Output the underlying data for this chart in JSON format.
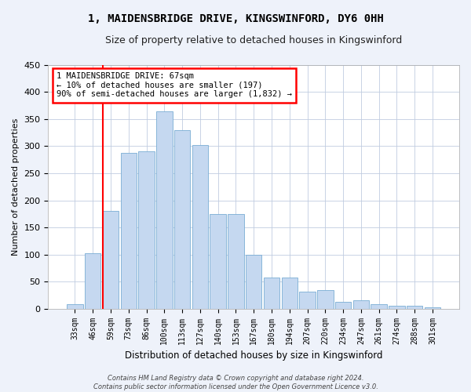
{
  "title": "1, MAIDENSBRIDGE DRIVE, KINGSWINFORD, DY6 0HH",
  "subtitle": "Size of property relative to detached houses in Kingswinford",
  "xlabel": "Distribution of detached houses by size in Kingswinford",
  "ylabel": "Number of detached properties",
  "categories": [
    "33sqm",
    "46sqm",
    "59sqm",
    "73sqm",
    "86sqm",
    "100sqm",
    "113sqm",
    "127sqm",
    "140sqm",
    "153sqm",
    "167sqm",
    "180sqm",
    "194sqm",
    "207sqm",
    "220sqm",
    "234sqm",
    "247sqm",
    "261sqm",
    "274sqm",
    "288sqm",
    "301sqm"
  ],
  "values": [
    8,
    103,
    181,
    288,
    290,
    365,
    330,
    302,
    175,
    175,
    100,
    57,
    57,
    32,
    35,
    12,
    16,
    8,
    5,
    5,
    3
  ],
  "bar_color": "#c5d8f0",
  "bar_edge_color": "#7aadd4",
  "vline_x_index": 2,
  "vline_color": "red",
  "annotation_line1": "1 MAIDENSBRIDGE DRIVE: 67sqm",
  "annotation_line2": "← 10% of detached houses are smaller (197)",
  "annotation_line3": "90% of semi-detached houses are larger (1,832) →",
  "annotation_box_color": "white",
  "annotation_box_edge": "red",
  "footer_line1": "Contains HM Land Registry data © Crown copyright and database right 2024.",
  "footer_line2": "Contains public sector information licensed under the Open Government Licence v3.0.",
  "ylim": [
    0,
    450
  ],
  "yticks": [
    0,
    50,
    100,
    150,
    200,
    250,
    300,
    350,
    400,
    450
  ],
  "background_color": "#eef2fa",
  "plot_background": "#ffffff",
  "title_fontsize": 10,
  "subtitle_fontsize": 9,
  "bar_linewidth": 0.6
}
